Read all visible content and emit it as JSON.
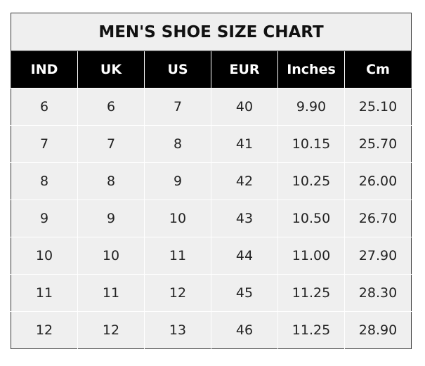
{
  "title": "MEN'S SHOE SIZE CHART",
  "headers": [
    "IND",
    "UK",
    "US",
    "EUR",
    "Inches",
    "Cm"
  ],
  "rows": [
    [
      "6",
      "6",
      "7",
      "40",
      "9.90",
      "25.10"
    ],
    [
      "7",
      "7",
      "8",
      "41",
      "10.15",
      "25.70"
    ],
    [
      "8",
      "8",
      "9",
      "42",
      "10.25",
      "26.00"
    ],
    [
      "9",
      "9",
      "10",
      "43",
      "10.50",
      "26.70"
    ],
    [
      "10",
      "10",
      "11",
      "44",
      "11.00",
      "27.90"
    ],
    [
      "11",
      "11",
      "12",
      "45",
      "11.25",
      "28.30"
    ],
    [
      "12",
      "12",
      "13",
      "46",
      "11.25",
      "28.90"
    ]
  ],
  "colors": {
    "header_bg": "#000000",
    "cell_bg": "#efefef",
    "header_text": "#ffffff"
  }
}
